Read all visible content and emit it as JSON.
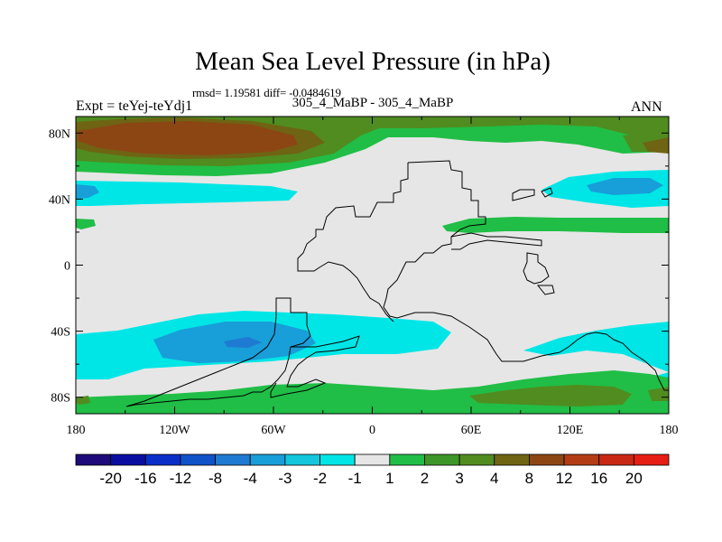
{
  "chart_data": {
    "type": "map-contour",
    "title": "Mean Sea Level Pressure (in hPa)",
    "stats_line": "rmsd= 1.19581 diff= -0.0484619",
    "experiment_label": "Expt = teYej-teYdj1",
    "comparison_label": "305_4_MaBP - 305_4_MaBP",
    "season": "ANN",
    "x_ticks": [
      "180",
      "120W",
      "60W",
      "0",
      "60E",
      "120E",
      "180"
    ],
    "y_ticks": [
      "80N",
      "40N",
      "0",
      "40S",
      "80S"
    ],
    "colorbar_labels": [
      "-20",
      "-16",
      "-12",
      "-8",
      "-4",
      "-3",
      "-2",
      "-1",
      "1",
      "2",
      "3",
      "4",
      "8",
      "12",
      "16",
      "20"
    ],
    "colors": {
      "n20": "#1e0a78",
      "n16": "#0a0ea0",
      "n12": "#0a2ec8",
      "n8": "#1052c8",
      "n4": "#1e7ad2",
      "n3": "#189ed8",
      "n2": "#14c6dc",
      "n1": "#00e6e6",
      "zero": "#e6e6e6",
      "p1": "#20be46",
      "p2": "#3c9628",
      "p3": "#508c20",
      "p4": "#6e6414",
      "p8": "#8c4614",
      "p12": "#b43c14",
      "p16": "#c82814",
      "p20": "#e61e14"
    }
  }
}
